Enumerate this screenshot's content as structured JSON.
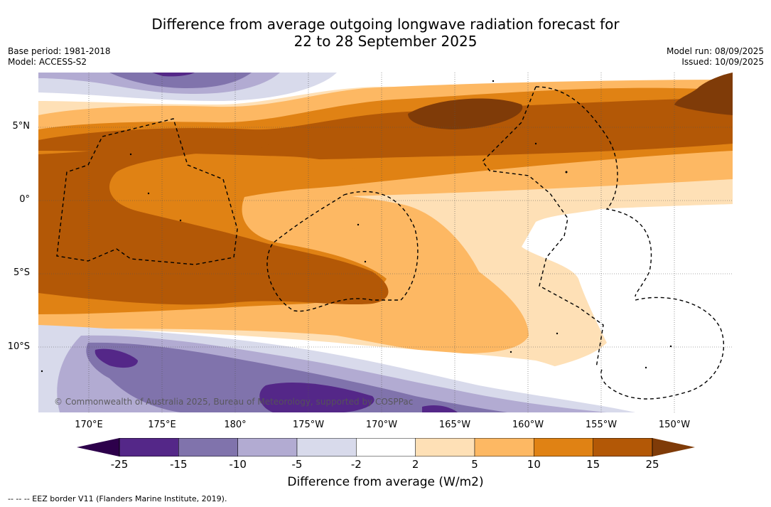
{
  "title_line1": "Difference from average outgoing longwave radiation forecast for",
  "title_line2": "22 to 28 September 2025",
  "base_period": "Base period: 1981-2018",
  "model": "Model: ACCESS-S2",
  "model_run": "Model run: 08/09/2025",
  "issued": "Issued: 10/09/2025",
  "lat_labels": [
    "5°N",
    "0°",
    "5°S",
    "10°S"
  ],
  "lon_labels": [
    "170°E",
    "175°E",
    "180°",
    "175°W",
    "170°W",
    "165°W",
    "160°W",
    "155°W",
    "150°W"
  ],
  "copyright": "© Commonwealth of Australia 2025, Bureau of Meteorology, supported by COSPPac",
  "colorbar": {
    "ticks": [
      "-25",
      "-15",
      "-10",
      "-5",
      "-2",
      "2",
      "5",
      "10",
      "15",
      "25"
    ],
    "colors": [
      "#542788",
      "#8073ac",
      "#b2abd2",
      "#d8daeb",
      "#ffffff",
      "#fee0b6",
      "#fdb863",
      "#e08214",
      "#b35806"
    ],
    "under_color": "#2d004b",
    "over_color": "#7f3b08",
    "label": "Difference from average (W/m2)"
  },
  "eez_legend": "--  --  -- EEZ border V11 (Flanders Marine Institute, 2019)."
}
